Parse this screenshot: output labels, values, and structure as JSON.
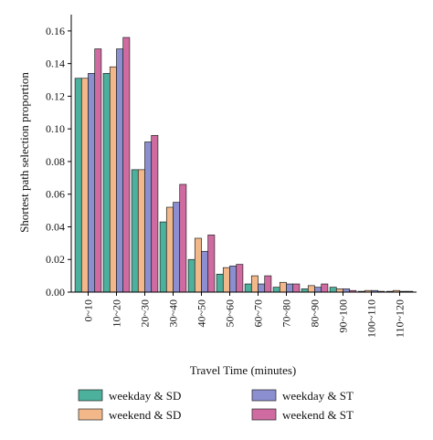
{
  "chart_data": {
    "type": "bar",
    "xlabel": "Travel Time (minutes)",
    "ylabel": "Shortest path selection proportion",
    "ylim": [
      0,
      0.17
    ],
    "yticks": [
      "0.00",
      "0.02",
      "0.04",
      "0.06",
      "0.08",
      "0.10",
      "0.12",
      "0.14",
      "0.16"
    ],
    "categories": [
      "0~10",
      "10~20",
      "20~30",
      "30~40",
      "40~50",
      "50~60",
      "60~70",
      "70~80",
      "80~90",
      "90~100",
      "100~110",
      "110~120"
    ],
    "legend_placement": "bottom",
    "series": [
      {
        "name": "weekday & SD",
        "color": "#4bb09c",
        "values": [
          0.131,
          0.134,
          0.075,
          0.043,
          0.02,
          0.011,
          0.005,
          0.003,
          0.002,
          0.003,
          0.0005,
          0.0005
        ]
      },
      {
        "name": "weekend & SD",
        "color": "#f2b88a",
        "values": [
          0.131,
          0.138,
          0.075,
          0.052,
          0.033,
          0.015,
          0.01,
          0.006,
          0.004,
          0.002,
          0.001,
          0.001
        ]
      },
      {
        "name": "weekday & ST",
        "color": "#8b8fcf",
        "values": [
          0.134,
          0.149,
          0.092,
          0.055,
          0.025,
          0.016,
          0.005,
          0.005,
          0.003,
          0.002,
          0.001,
          0.0005
        ]
      },
      {
        "name": "weekend & ST",
        "color": "#d06ba1",
        "values": [
          0.149,
          0.156,
          0.096,
          0.066,
          0.035,
          0.017,
          0.01,
          0.005,
          0.005,
          0.001,
          0.0005,
          0.0005
        ]
      }
    ]
  }
}
